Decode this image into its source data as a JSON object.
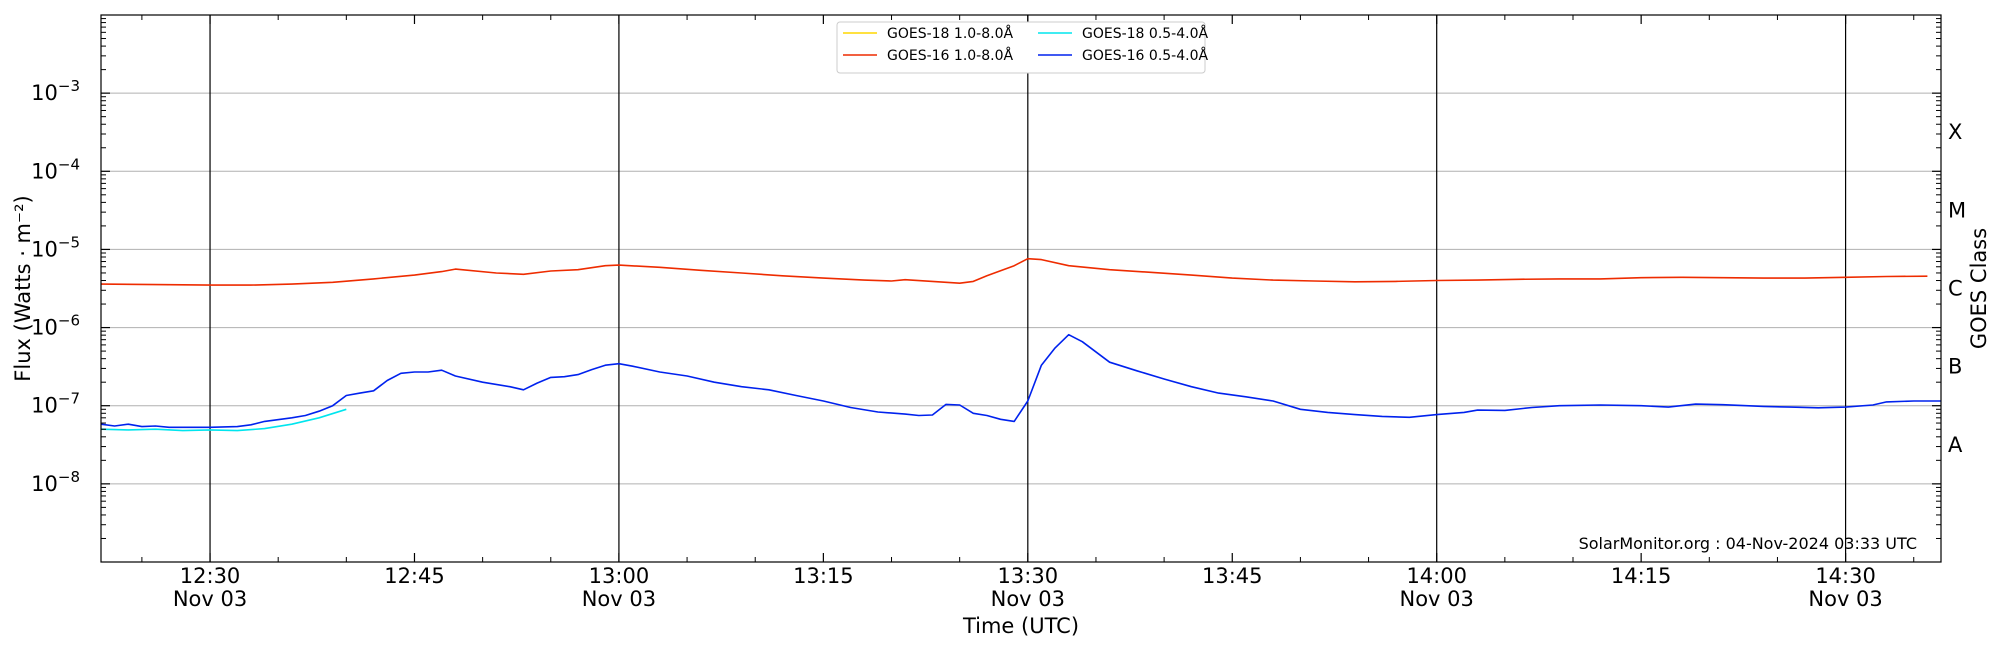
{
  "chart_data": {
    "type": "line",
    "xlabel": "Time (UTC)",
    "ylabel": "Flux (Watts · m⁻²)",
    "y2label": "GOES Class",
    "yscale": "log",
    "ylim": [
      1e-09,
      0.01
    ],
    "xlim": [
      "12:22",
      "14:37"
    ],
    "x_ticks": [
      {
        "t": "12:30",
        "label": "12:30",
        "date": "Nov 03"
      },
      {
        "t": "12:45",
        "label": "12:45",
        "date": ""
      },
      {
        "t": "13:00",
        "label": "13:00",
        "date": "Nov 03"
      },
      {
        "t": "13:15",
        "label": "13:15",
        "date": ""
      },
      {
        "t": "13:30",
        "label": "13:30",
        "date": "Nov 03"
      },
      {
        "t": "13:45",
        "label": "13:45",
        "date": ""
      },
      {
        "t": "14:00",
        "label": "14:00",
        "date": "Nov 03"
      },
      {
        "t": "14:15",
        "label": "14:15",
        "date": ""
      },
      {
        "t": "14:30",
        "label": "14:30",
        "date": "Nov 03"
      }
    ],
    "day_lines": [
      "12:30",
      "13:00",
      "13:30",
      "14:00",
      "14:30"
    ],
    "y_ticks": [
      {
        "value": 1e-08,
        "base": "10",
        "exp": "−8"
      },
      {
        "value": 1e-07,
        "base": "10",
        "exp": "−7"
      },
      {
        "value": 1e-06,
        "base": "10",
        "exp": "−6"
      },
      {
        "value": 1e-05,
        "base": "10",
        "exp": "−5"
      },
      {
        "value": 0.0001,
        "base": "10",
        "exp": "−4"
      },
      {
        "value": 0.001,
        "base": "10",
        "exp": "−3"
      }
    ],
    "goes_classes": [
      {
        "label": "A",
        "value": 3.16e-08
      },
      {
        "label": "B",
        "value": 3.16e-07
      },
      {
        "label": "C",
        "value": 3.16e-06
      },
      {
        "label": "M",
        "value": 3.16e-05
      },
      {
        "label": "X",
        "value": 0.000316
      }
    ],
    "grid": true,
    "legend_position": "top-center",
    "legend": [
      {
        "label": "GOES-18 1.0-8.0Å",
        "color": "#ffd700",
        "series": "goes18_long"
      },
      {
        "label": "GOES-18 0.5-4.0Å",
        "color": "#00e5ee",
        "series": "goes18_short"
      },
      {
        "label": "GOES-16 1.0-8.0Å",
        "color": "#ee2c00",
        "series": "goes16_long"
      },
      {
        "label": "GOES-16 0.5-4.0Å",
        "color": "#0022ee",
        "series": "goes16_short"
      }
    ],
    "series": [
      {
        "key": "goes16_long",
        "name": "GOES-16 1.0-8.0Å",
        "color": "#ee2c00",
        "points": [
          [
            "12:22",
            3.6e-06
          ],
          [
            "12:26",
            3.55e-06
          ],
          [
            "12:30",
            3.5e-06
          ],
          [
            "12:33",
            3.5e-06
          ],
          [
            "12:36",
            3.6e-06
          ],
          [
            "12:39",
            3.8e-06
          ],
          [
            "12:42",
            4.2e-06
          ],
          [
            "12:45",
            4.7e-06
          ],
          [
            "12:47",
            5.2e-06
          ],
          [
            "12:48",
            5.6e-06
          ],
          [
            "12:51",
            5e-06
          ],
          [
            "12:53",
            4.8e-06
          ],
          [
            "12:55",
            5.3e-06
          ],
          [
            "12:57",
            5.5e-06
          ],
          [
            "12:59",
            6.2e-06
          ],
          [
            "13:00",
            6.3e-06
          ],
          [
            "13:03",
            5.9e-06
          ],
          [
            "13:06",
            5.4e-06
          ],
          [
            "13:09",
            5e-06
          ],
          [
            "13:12",
            4.6e-06
          ],
          [
            "13:15",
            4.3e-06
          ],
          [
            "13:18",
            4.05e-06
          ],
          [
            "13:20",
            3.95e-06
          ],
          [
            "13:21",
            4.1e-06
          ],
          [
            "13:23",
            3.9e-06
          ],
          [
            "13:25",
            3.7e-06
          ],
          [
            "13:26",
            3.9e-06
          ],
          [
            "13:27",
            4.6e-06
          ],
          [
            "13:29",
            6.2e-06
          ],
          [
            "13:30",
            7.6e-06
          ],
          [
            "13:31",
            7.4e-06
          ],
          [
            "13:33",
            6.2e-06
          ],
          [
            "13:36",
            5.5e-06
          ],
          [
            "13:39",
            5.1e-06
          ],
          [
            "13:42",
            4.7e-06
          ],
          [
            "13:45",
            4.3e-06
          ],
          [
            "13:48",
            4.05e-06
          ],
          [
            "13:51",
            3.95e-06
          ],
          [
            "13:54",
            3.85e-06
          ],
          [
            "13:57",
            3.9e-06
          ],
          [
            "14:00",
            4e-06
          ],
          [
            "14:03",
            4.05e-06
          ],
          [
            "14:06",
            4.15e-06
          ],
          [
            "14:09",
            4.2e-06
          ],
          [
            "14:12",
            4.2e-06
          ],
          [
            "14:15",
            4.35e-06
          ],
          [
            "14:18",
            4.4e-06
          ],
          [
            "14:21",
            4.35e-06
          ],
          [
            "14:24",
            4.3e-06
          ],
          [
            "14:27",
            4.3e-06
          ],
          [
            "14:30",
            4.4e-06
          ],
          [
            "14:33",
            4.5e-06
          ],
          [
            "14:36",
            4.55e-06
          ]
        ]
      },
      {
        "key": "goes16_short",
        "name": "GOES-16 0.5-4.0Å",
        "color": "#0022ee",
        "points": [
          [
            "12:22",
            5.8e-08
          ],
          [
            "12:23",
            5.5e-08
          ],
          [
            "12:24",
            5.8e-08
          ],
          [
            "12:25",
            5.4e-08
          ],
          [
            "12:26",
            5.5e-08
          ],
          [
            "12:27",
            5.3e-08
          ],
          [
            "12:30",
            5.3e-08
          ],
          [
            "12:32",
            5.4e-08
          ],
          [
            "12:33",
            5.7e-08
          ],
          [
            "12:34",
            6.3e-08
          ],
          [
            "12:36",
            7e-08
          ],
          [
            "12:37",
            7.5e-08
          ],
          [
            "12:38",
            8.5e-08
          ],
          [
            "12:39",
            1e-07
          ],
          [
            "12:40",
            1.35e-07
          ],
          [
            "12:41",
            1.45e-07
          ],
          [
            "12:42",
            1.55e-07
          ],
          [
            "12:43",
            2.1e-07
          ],
          [
            "12:44",
            2.6e-07
          ],
          [
            "12:45",
            2.7e-07
          ],
          [
            "12:46",
            2.7e-07
          ],
          [
            "12:47",
            2.85e-07
          ],
          [
            "12:48",
            2.4e-07
          ],
          [
            "12:50",
            2e-07
          ],
          [
            "12:52",
            1.75e-07
          ],
          [
            "12:53",
            1.6e-07
          ],
          [
            "12:54",
            1.95e-07
          ],
          [
            "12:55",
            2.3e-07
          ],
          [
            "12:56",
            2.35e-07
          ],
          [
            "12:57",
            2.5e-07
          ],
          [
            "12:58",
            2.9e-07
          ],
          [
            "12:59",
            3.3e-07
          ],
          [
            "13:00",
            3.45e-07
          ],
          [
            "13:01",
            3.2e-07
          ],
          [
            "13:03",
            2.7e-07
          ],
          [
            "13:05",
            2.4e-07
          ],
          [
            "13:07",
            2e-07
          ],
          [
            "13:09",
            1.75e-07
          ],
          [
            "13:11",
            1.6e-07
          ],
          [
            "13:13",
            1.35e-07
          ],
          [
            "13:15",
            1.15e-07
          ],
          [
            "13:17",
            9.5e-08
          ],
          [
            "13:19",
            8.3e-08
          ],
          [
            "13:21",
            7.8e-08
          ],
          [
            "13:22",
            7.5e-08
          ],
          [
            "13:23",
            7.6e-08
          ],
          [
            "13:24",
            1.04e-07
          ],
          [
            "13:25",
            1.02e-07
          ],
          [
            "13:26",
            8e-08
          ],
          [
            "13:27",
            7.5e-08
          ],
          [
            "13:28",
            6.7e-08
          ],
          [
            "13:29",
            6.3e-08
          ],
          [
            "13:30",
            1.15e-07
          ],
          [
            "13:31",
            3.3e-07
          ],
          [
            "13:32",
            5.5e-07
          ],
          [
            "13:33",
            8.1e-07
          ],
          [
            "13:34",
            6.6e-07
          ],
          [
            "13:36",
            3.6e-07
          ],
          [
            "13:38",
            2.8e-07
          ],
          [
            "13:40",
            2.2e-07
          ],
          [
            "13:42",
            1.75e-07
          ],
          [
            "13:44",
            1.45e-07
          ],
          [
            "13:46",
            1.3e-07
          ],
          [
            "13:48",
            1.15e-07
          ],
          [
            "13:50",
            9e-08
          ],
          [
            "13:52",
            8.2e-08
          ],
          [
            "13:54",
            7.7e-08
          ],
          [
            "13:56",
            7.3e-08
          ],
          [
            "13:58",
            7.1e-08
          ],
          [
            "14:00",
            7.7e-08
          ],
          [
            "14:02",
            8.2e-08
          ],
          [
            "14:03",
            8.8e-08
          ],
          [
            "14:05",
            8.7e-08
          ],
          [
            "14:07",
            9.5e-08
          ],
          [
            "14:09",
            1e-07
          ],
          [
            "14:12",
            1.02e-07
          ],
          [
            "14:15",
            1e-07
          ],
          [
            "14:17",
            9.6e-08
          ],
          [
            "14:19",
            1.05e-07
          ],
          [
            "14:21",
            1.03e-07
          ],
          [
            "14:24",
            9.8e-08
          ],
          [
            "14:26",
            9.6e-08
          ],
          [
            "14:28",
            9.4e-08
          ],
          [
            "14:30",
            9.6e-08
          ],
          [
            "14:32",
            1.02e-07
          ],
          [
            "14:33",
            1.12e-07
          ],
          [
            "14:35",
            1.15e-07
          ],
          [
            "14:37",
            1.15e-07
          ]
        ]
      },
      {
        "key": "goes18_short",
        "name": "GOES-18 0.5-4.0Å",
        "color": "#00e5ee",
        "points": [
          [
            "12:22",
            5e-08
          ],
          [
            "12:24",
            4.9e-08
          ],
          [
            "12:26",
            5e-08
          ],
          [
            "12:28",
            4.8e-08
          ],
          [
            "12:30",
            4.9e-08
          ],
          [
            "12:32",
            4.8e-08
          ],
          [
            "12:34",
            5.1e-08
          ],
          [
            "12:36",
            5.8e-08
          ],
          [
            "12:38",
            7e-08
          ],
          [
            "12:40",
            9e-08
          ]
        ]
      }
    ],
    "annotations": [
      "SolarMonitor.org : 04-Nov-2024 03:33 UTC"
    ]
  }
}
